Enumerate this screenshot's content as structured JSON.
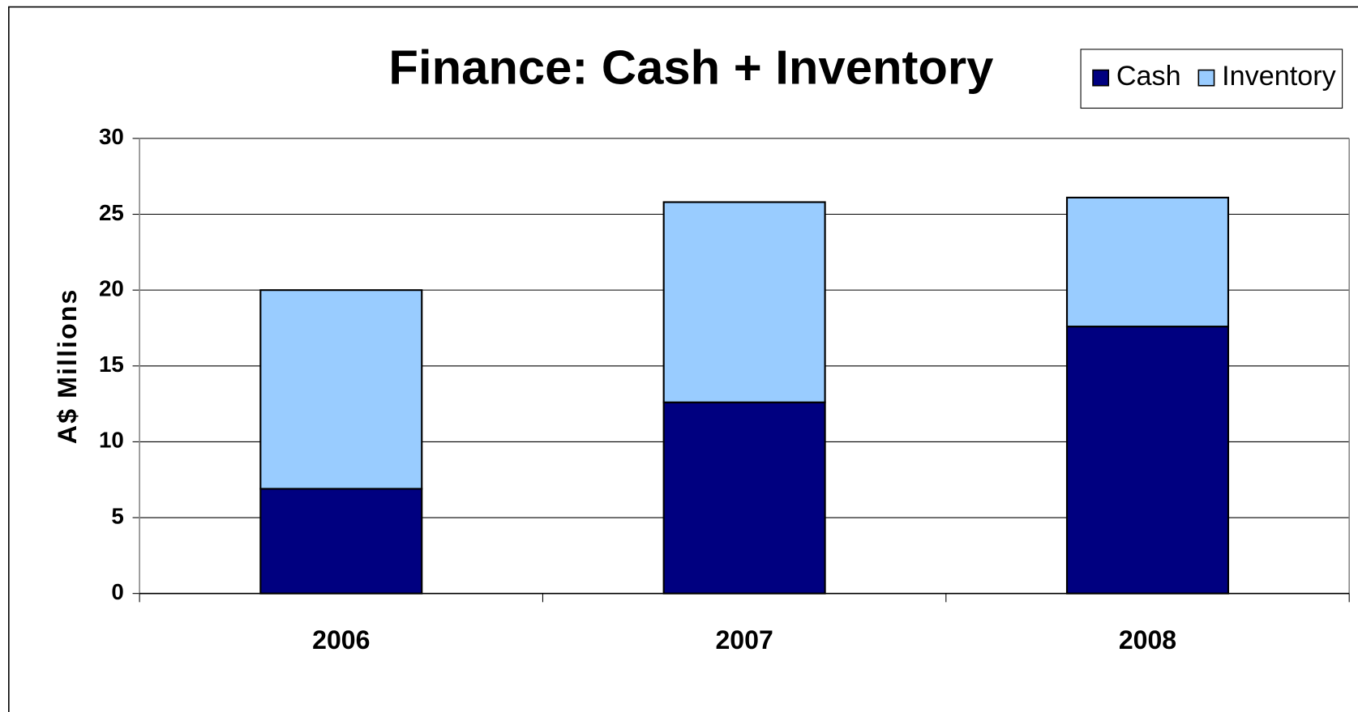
{
  "chart_data": {
    "type": "stacked_bar",
    "title": "Finance:  Cash + Inventory",
    "y_label": "A$ Millions",
    "categories": [
      "2006",
      "2007",
      "2008"
    ],
    "series": [
      {
        "name": "Cash",
        "color": "#000080",
        "values": [
          6.9,
          12.6,
          17.6
        ]
      },
      {
        "name": "Inventory",
        "color": "#99ccff",
        "values": [
          13.1,
          13.2,
          8.5
        ]
      }
    ],
    "ylim": [
      0,
      30
    ],
    "yticks": [
      0,
      5,
      10,
      15,
      20,
      25,
      30
    ],
    "grid": true,
    "legend": "top-right"
  }
}
